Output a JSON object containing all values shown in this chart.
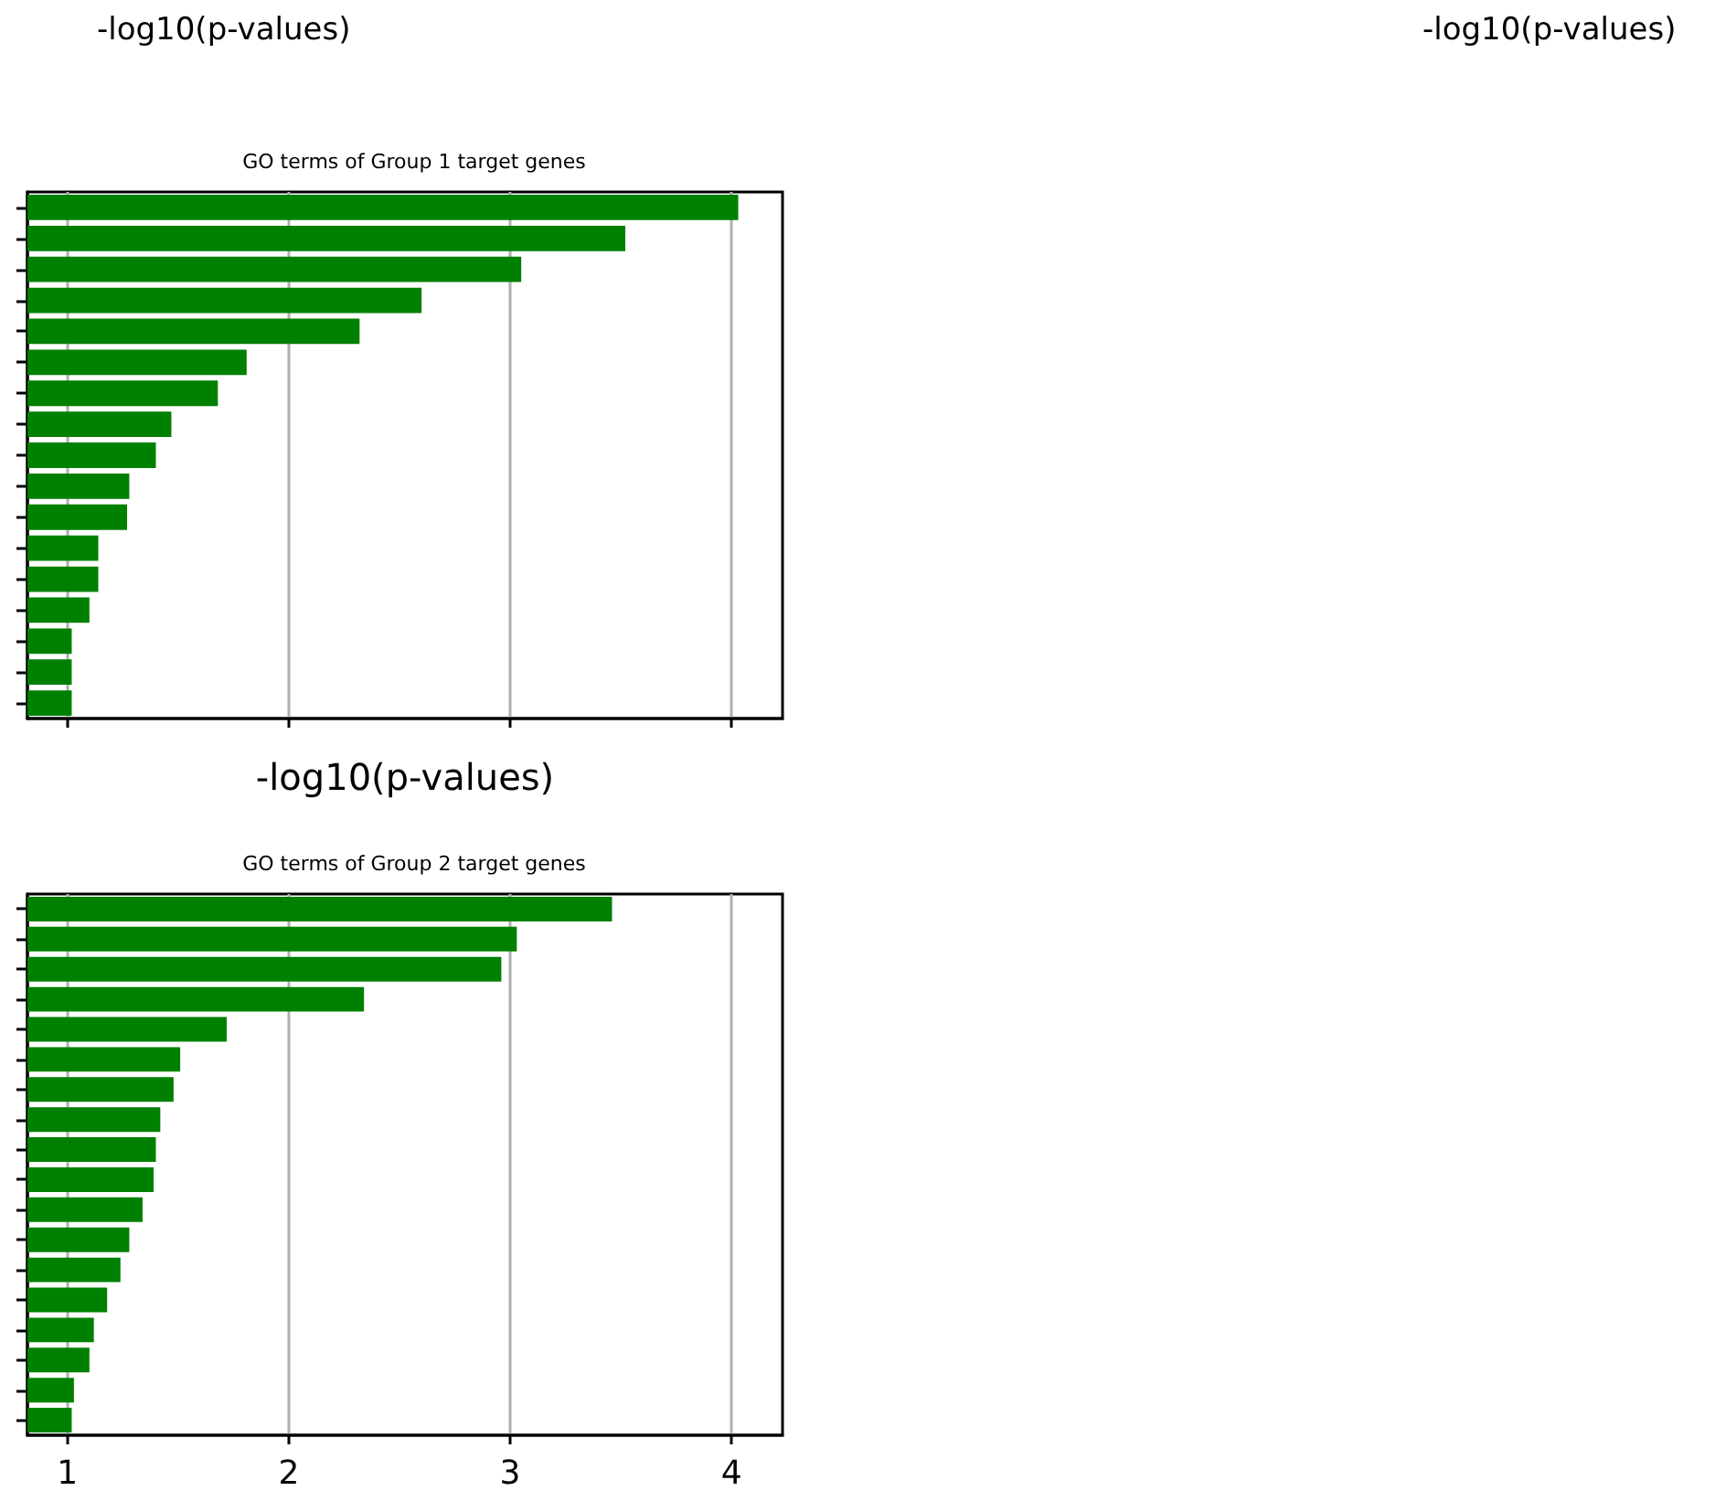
{
  "chart_data": [
    {
      "type": "bar",
      "orientation": "horizontal",
      "title": "GO terms of Group 1 target genes",
      "xlabel": "-log10(p-values)",
      "annotations": [
        "-log10(p-values)",
        "-log10(p-values)"
      ],
      "categories": [
        null,
        null,
        null,
        null,
        null,
        null,
        null,
        null,
        null,
        null,
        null,
        null,
        null,
        null,
        null,
        null,
        null
      ],
      "values": [
        4.03,
        3.52,
        3.05,
        2.6,
        2.32,
        1.81,
        1.68,
        1.47,
        1.4,
        1.28,
        1.27,
        1.14,
        1.14,
        1.1,
        1.02,
        1.02,
        1.02
      ],
      "color": "#008000",
      "xlim": [
        0.82,
        4.23
      ],
      "xticks": [
        1,
        2,
        3,
        4
      ],
      "grid": "x",
      "tick_labels": false
    },
    {
      "type": "bar",
      "orientation": "horizontal",
      "title": "GO terms of Group 2 target genes",
      "categories": [
        null,
        null,
        null,
        null,
        null,
        null,
        null,
        null,
        null,
        null,
        null,
        null,
        null,
        null,
        null,
        null,
        null,
        null
      ],
      "values": [
        3.46,
        3.03,
        2.96,
        2.34,
        1.72,
        1.51,
        1.48,
        1.42,
        1.4,
        1.39,
        1.34,
        1.28,
        1.24,
        1.18,
        1.12,
        1.1,
        1.03,
        1.02
      ],
      "color": "#008000",
      "xlim": [
        0.82,
        4.23
      ],
      "xticks": [
        1,
        2,
        3,
        4
      ],
      "grid": "x",
      "tick_labels": "x"
    }
  ]
}
